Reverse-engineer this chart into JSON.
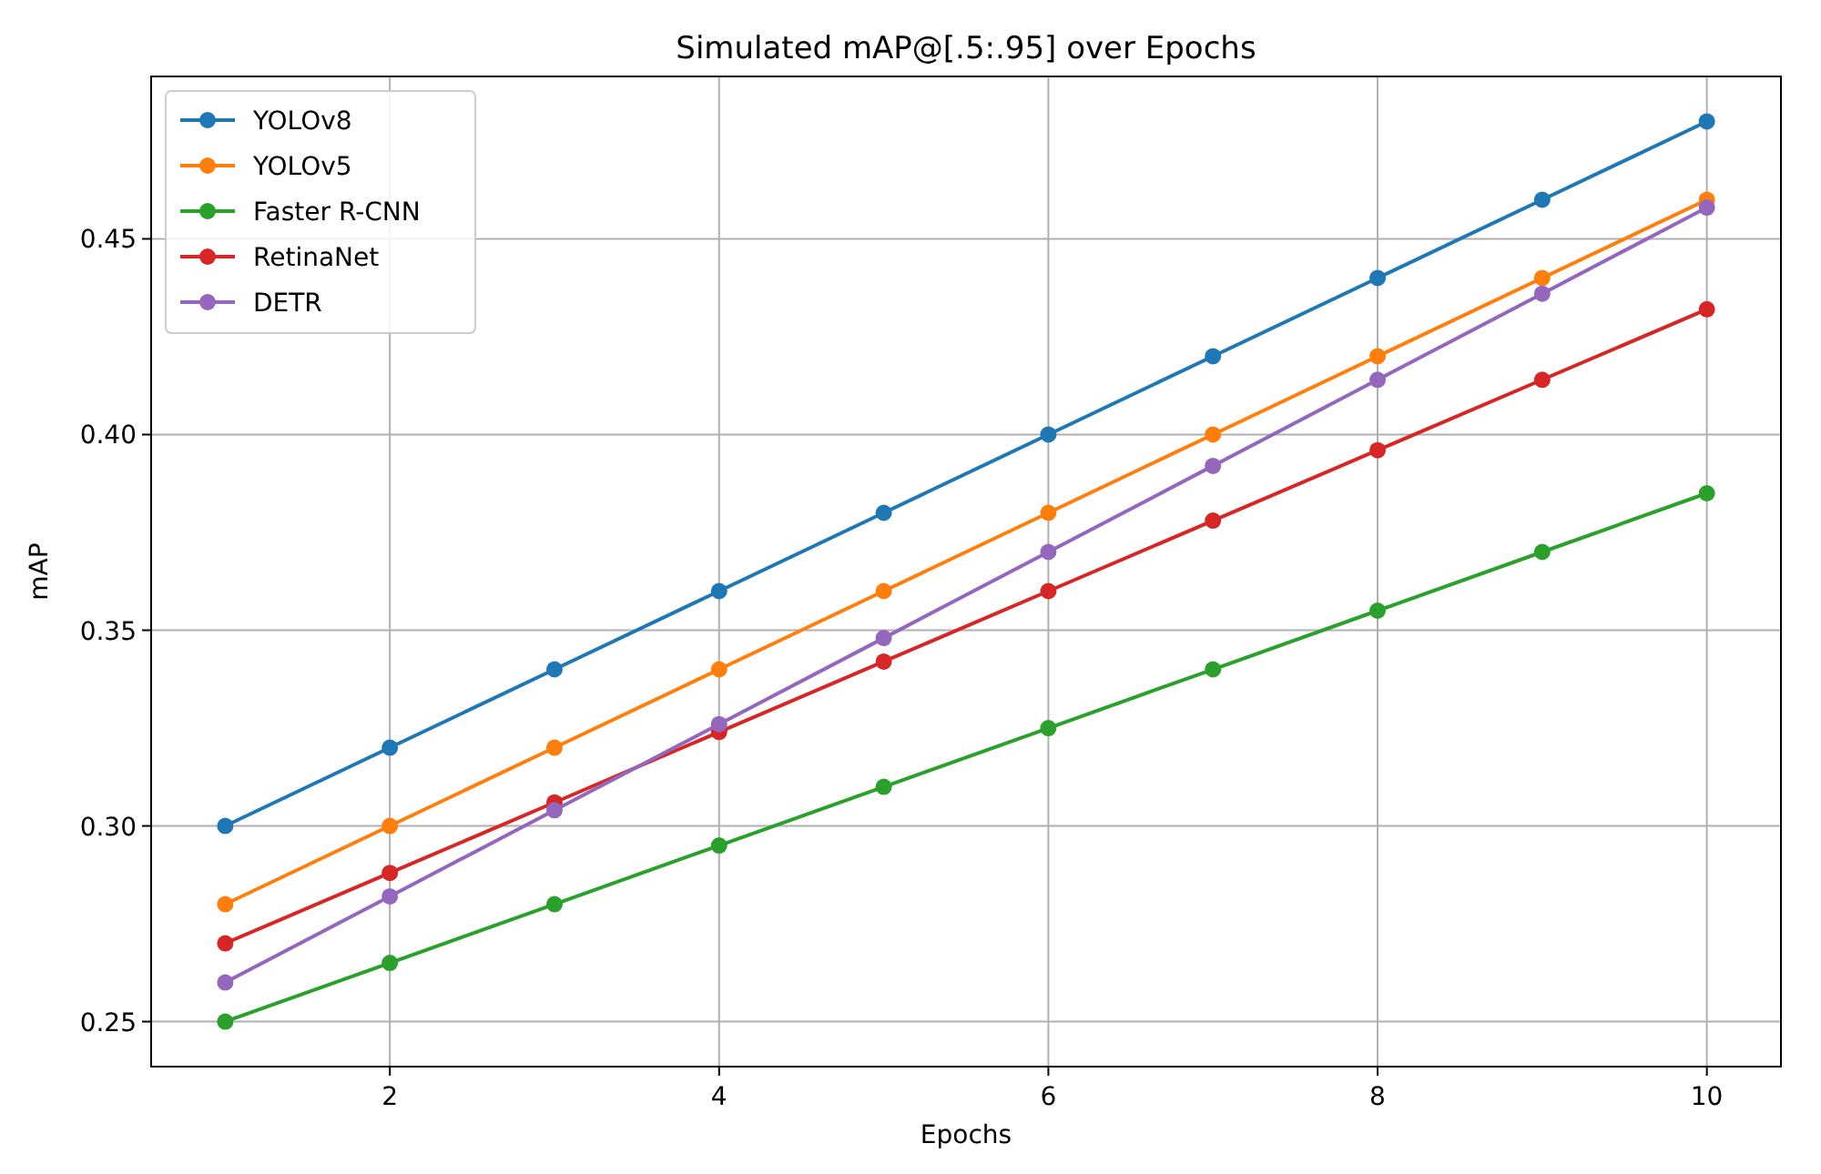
{
  "chart_data": {
    "type": "line",
    "title": "Simulated mAP@[.5:.95] over Epochs",
    "xlabel": "Epochs",
    "ylabel": "mAP",
    "x": [
      1,
      2,
      3,
      4,
      5,
      6,
      7,
      8,
      9,
      10
    ],
    "series": [
      {
        "name": "YOLOv8",
        "color": "#1f77b4",
        "values": [
          0.3,
          0.32,
          0.34,
          0.36,
          0.38,
          0.4,
          0.42,
          0.44,
          0.46,
          0.48
        ]
      },
      {
        "name": "YOLOv5",
        "color": "#ff7f0e",
        "values": [
          0.28,
          0.3,
          0.32,
          0.34,
          0.36,
          0.38,
          0.4,
          0.42,
          0.44,
          0.46
        ]
      },
      {
        "name": "Faster R-CNN",
        "color": "#2ca02c",
        "values": [
          0.25,
          0.265,
          0.28,
          0.295,
          0.31,
          0.325,
          0.34,
          0.355,
          0.37,
          0.385
        ]
      },
      {
        "name": "RetinaNet",
        "color": "#d62728",
        "values": [
          0.27,
          0.288,
          0.306,
          0.324,
          0.342,
          0.36,
          0.378,
          0.396,
          0.414,
          0.432
        ]
      },
      {
        "name": "DETR",
        "color": "#9467bd",
        "values": [
          0.26,
          0.282,
          0.304,
          0.326,
          0.348,
          0.37,
          0.392,
          0.414,
          0.436,
          0.458
        ]
      }
    ],
    "xlim": [
      0.55,
      10.45
    ],
    "xticks": [
      2,
      4,
      6,
      8,
      10
    ],
    "ylim": [
      0.2385,
      0.4915
    ],
    "yticks": [
      {
        "value": 0.25,
        "label": "0.25"
      },
      {
        "value": 0.3,
        "label": "0.30"
      },
      {
        "value": 0.35,
        "label": "0.35"
      },
      {
        "value": 0.4,
        "label": "0.40"
      },
      {
        "value": 0.45,
        "label": "0.45"
      }
    ],
    "grid": true,
    "legend": "top left",
    "marker": "circle",
    "line_style": "solid"
  }
}
